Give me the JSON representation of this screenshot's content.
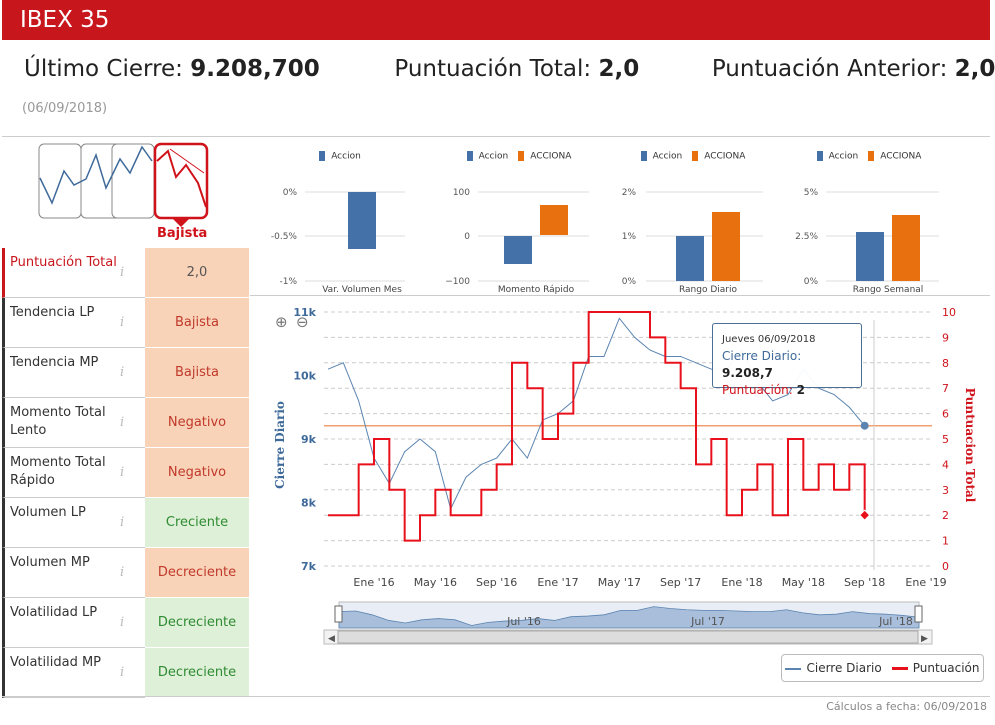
{
  "header": {
    "title": "IBEX 35"
  },
  "stats": {
    "last_close_label": "Último Cierre:",
    "last_close_value": "9.208,700",
    "total_score_label": "Puntuación Total:",
    "total_score_value": "2,0",
    "prev_score_label": "Puntuación Anterior:",
    "prev_score_value": "2,0",
    "date": "(06/09/2018)"
  },
  "trend": {
    "label": "Bajista",
    "active_index": 3,
    "accent": "#d0131b"
  },
  "indicators": [
    {
      "name": "Puntuación Total",
      "value": "2,0",
      "status": "neutral",
      "highlight": true
    },
    {
      "name": "Tendencia LP",
      "value": "Bajista",
      "status": "warn"
    },
    {
      "name": "Tendencia MP",
      "value": "Bajista",
      "status": "warn"
    },
    {
      "name": "Momento Total Lento",
      "value": "Negativo",
      "status": "warn"
    },
    {
      "name": "Momento Total Rápido",
      "value": "Negativo",
      "status": "warn"
    },
    {
      "name": "Volumen LP",
      "value": "Creciente",
      "status": "good"
    },
    {
      "name": "Volumen MP",
      "value": "Decreciente",
      "status": "warn"
    },
    {
      "name": "Volatilidad LP",
      "value": "Decreciente",
      "status": "good"
    },
    {
      "name": "Volatilidad MP",
      "value": "Decreciente",
      "status": "good"
    }
  ],
  "info_icon": "i",
  "chart_data": [
    {
      "type": "bar",
      "title": "Var. Volumen Mes",
      "categories": [
        "Var. Volumen Mes"
      ],
      "series": [
        {
          "name": "Accion",
          "values": [
            -0.65
          ],
          "color": "#4472a8"
        }
      ],
      "ylim": [
        -1,
        0
      ],
      "ticks": [
        "0%",
        "-0.5%",
        "-1%"
      ]
    },
    {
      "type": "bar",
      "title": "Momento Rápido",
      "categories": [
        "Momento Rápido"
      ],
      "series": [
        {
          "name": "Accion",
          "values": [
            -65
          ],
          "color": "#4472a8"
        },
        {
          "name": "ACCIONA",
          "values": [
            68
          ],
          "color": "#e8700f"
        }
      ],
      "ylim": [
        -100,
        100
      ],
      "ticks": [
        "100",
        "0",
        "−100"
      ]
    },
    {
      "type": "bar",
      "title": "Rango Diario",
      "categories": [
        "Rango Diario"
      ],
      "series": [
        {
          "name": "Accion",
          "values": [
            1.0
          ],
          "color": "#4472a8"
        },
        {
          "name": "ACCIONA",
          "values": [
            1.55
          ],
          "color": "#e8700f"
        }
      ],
      "ylim": [
        0,
        2
      ],
      "ticks": [
        "2%",
        "1%",
        "0%"
      ]
    },
    {
      "type": "bar",
      "title": "Rango Semanal",
      "categories": [
        "Rango Semanal"
      ],
      "series": [
        {
          "name": "Accion",
          "values": [
            2.7
          ],
          "color": "#4472a8"
        },
        {
          "name": "ACCIONA",
          "values": [
            3.6
          ],
          "color": "#e8700f"
        }
      ],
      "ylim": [
        0,
        5
      ],
      "ticks": [
        "5%",
        "2.5%",
        "0%"
      ]
    },
    {
      "type": "line",
      "title": "",
      "ylabel": "Cierre Diario",
      "y2label": "Puntuacion Total",
      "x_ticks": [
        "Ene '16",
        "May '16",
        "Sep '16",
        "Ene '17",
        "May '17",
        "Sep '17",
        "Ene '18",
        "May '18",
        "Sep '18",
        "Ene '19"
      ],
      "y_ticks": [
        "11k",
        "10k",
        "9k",
        "8k",
        "7k"
      ],
      "y2_ticks": [
        "10",
        "9",
        "8",
        "7",
        "6",
        "5",
        "4",
        "3",
        "2",
        "1",
        "0"
      ],
      "ylim": [
        7000,
        11000
      ],
      "y2lim": [
        0,
        10
      ],
      "reference_line": 9208.7,
      "navigator_labels": [
        "Jul '16",
        "Jul '17",
        "Jul '18"
      ],
      "series": [
        {
          "name": "Cierre Diario",
          "color": "#5b84b1",
          "x": [
            "2015-10",
            "2015-11",
            "2015-12",
            "2016-01",
            "2016-02",
            "2016-03",
            "2016-04",
            "2016-05",
            "2016-06",
            "2016-07",
            "2016-08",
            "2016-09",
            "2016-10",
            "2016-11",
            "2016-12",
            "2017-01",
            "2017-02",
            "2017-03",
            "2017-04",
            "2017-05",
            "2017-06",
            "2017-07",
            "2017-08",
            "2017-09",
            "2017-10",
            "2017-11",
            "2017-12",
            "2018-01",
            "2018-02",
            "2018-03",
            "2018-04",
            "2018-05",
            "2018-06",
            "2018-07",
            "2018-08",
            "2018-09"
          ],
          "values": [
            10100,
            10200,
            9600,
            8700,
            8300,
            8800,
            9000,
            8800,
            7900,
            8400,
            8600,
            8700,
            9000,
            8700,
            9300,
            9400,
            9600,
            10300,
            10300,
            10900,
            10600,
            10400,
            10300,
            10300,
            10200,
            10100,
            10100,
            10400,
            9900,
            9600,
            9700,
            10100,
            9800,
            9700,
            9500,
            9209
          ]
        },
        {
          "name": "Puntuación",
          "color": "#e8111b",
          "x": [
            "2015-10",
            "2015-11",
            "2015-12",
            "2016-01",
            "2016-02",
            "2016-03",
            "2016-04",
            "2016-05",
            "2016-06",
            "2016-07",
            "2016-08",
            "2016-09",
            "2016-10",
            "2016-11",
            "2016-12",
            "2017-01",
            "2017-02",
            "2017-03",
            "2017-04",
            "2017-05",
            "2017-06",
            "2017-07",
            "2017-08",
            "2017-09",
            "2017-10",
            "2017-11",
            "2017-12",
            "2018-01",
            "2018-02",
            "2018-03",
            "2018-04",
            "2018-05",
            "2018-06",
            "2018-07",
            "2018-08",
            "2018-09"
          ],
          "values": [
            2,
            2,
            4,
            5,
            3,
            1,
            2,
            3,
            2,
            2,
            3,
            4,
            8,
            7,
            5,
            6,
            8,
            10,
            10,
            10,
            10,
            9,
            8,
            7,
            4,
            5,
            2,
            3,
            4,
            2,
            5,
            3,
            4,
            3,
            4,
            2
          ]
        }
      ]
    }
  ],
  "legend": {
    "close": "Cierre Diario",
    "score": "Puntuación"
  },
  "tooltip": {
    "date": "Jueves 06/09/2018",
    "close_label": "Cierre Diario:",
    "close_value": "9.208,7",
    "score_label": "Puntuación:",
    "score_value": "2"
  },
  "footer": "Cálculos a fecha: 06/09/2018"
}
